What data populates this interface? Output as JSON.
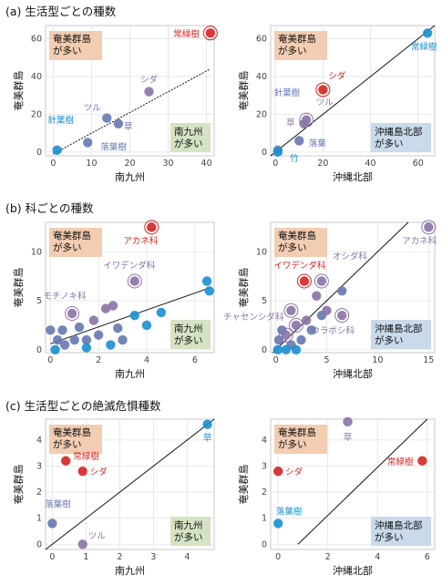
{
  "sections": {
    "a": "(a) 生活型ごとの種数",
    "b": "(b) 科ごとの種数",
    "c": "(c) 生活型ごとの絶滅危惧種数"
  },
  "colors": {
    "red": "#d62424",
    "purple": "#8a72a6",
    "blue": "#1a8fd0",
    "steel": "#6678b0",
    "orangeBox": "#f2cdb2",
    "greenBox": "#d5e3c4",
    "blueBox": "#c9daea"
  },
  "chart_data": [
    {
      "id": "a-left",
      "type": "scatter",
      "xlabel": "南九州",
      "ylabel": "奄美群島",
      "xlim": [
        -2,
        42
      ],
      "ylim": [
        -2,
        67
      ],
      "xticks": [
        0,
        10,
        20,
        30,
        40
      ],
      "yticks": [
        0,
        20,
        40,
        60
      ],
      "diag": false,
      "trend": [
        [
          0,
          -1
        ],
        [
          41,
          44
        ]
      ],
      "box_top": [
        "奄美群島",
        "が多い"
      ],
      "box_bottom": [
        "南九州",
        "が多い"
      ],
      "bottom_box_color": "green",
      "points": [
        {
          "x": 41,
          "y": 63,
          "c": "red",
          "ring": true,
          "label": "常緑樹"
        },
        {
          "x": 25,
          "y": 32,
          "c": "purple",
          "label": "シダ"
        },
        {
          "x": 14,
          "y": 18,
          "c": "steel",
          "label": "ツル"
        },
        {
          "x": 17,
          "y": 15,
          "c": "steel",
          "label": "草"
        },
        {
          "x": 9,
          "y": 5,
          "c": "steel",
          "label": "落葉樹"
        },
        {
          "x": 1,
          "y": 1,
          "c": "blue",
          "label": "針葉樹"
        }
      ]
    },
    {
      "id": "a-right",
      "type": "scatter",
      "xlabel": "沖縄北部",
      "ylabel": "奄美群島",
      "xlim": [
        -2,
        67
      ],
      "ylim": [
        -2,
        67
      ],
      "xticks": [
        0,
        20,
        40,
        60
      ],
      "yticks": [
        0,
        20,
        40,
        60
      ],
      "diag": true,
      "box_top": [
        "奄美群島",
        "が多い"
      ],
      "box_bottom": [
        "沖縄島北部",
        "が多い"
      ],
      "bottom_box_color": "blue",
      "points": [
        {
          "x": 64,
          "y": 63,
          "c": "blue",
          "label": "常緑樹"
        },
        {
          "x": 20,
          "y": 33,
          "c": "red",
          "ring": true,
          "label": "シダ"
        },
        {
          "x": 13,
          "y": 17,
          "c": "purple",
          "ring": true,
          "label": "ツル"
        },
        {
          "x": 12,
          "y": 15,
          "c": "purple",
          "label": "草"
        },
        {
          "x": 10,
          "y": 6,
          "c": "steel",
          "label": "落葉"
        },
        {
          "x": 1,
          "y": 1,
          "c": "steel",
          "label": "針葉樹"
        },
        {
          "x": 1,
          "y": 0,
          "c": "blue",
          "label": "竹"
        }
      ]
    },
    {
      "id": "b-left",
      "type": "scatter",
      "xlabel": "南九州",
      "ylabel": "奄美群島",
      "xlim": [
        -0.2,
        6.8
      ],
      "ylim": [
        -0.3,
        13
      ],
      "xticks": [
        0,
        2,
        4,
        6
      ],
      "yticks": [
        0,
        5,
        10
      ],
      "diag": false,
      "trend": [
        [
          0,
          0.6
        ],
        [
          6.6,
          6.3
        ]
      ],
      "box_top": [
        "奄美群島",
        "が多い"
      ],
      "box_bottom": [
        "南九州",
        "が多い"
      ],
      "bottom_box_color": "green",
      "points": [
        {
          "x": 4.2,
          "y": 12.5,
          "c": "red",
          "ring": true,
          "label": "アカネ科"
        },
        {
          "x": 3.5,
          "y": 7,
          "c": "purple",
          "ring": true,
          "label": "イワデンダ科"
        },
        {
          "x": 0.9,
          "y": 3.7,
          "c": "purple",
          "ring": true,
          "label": "モチノキ科"
        },
        {
          "x": 0.3,
          "y": 1,
          "c": "steel"
        },
        {
          "x": 0.5,
          "y": 2,
          "c": "steel"
        },
        {
          "x": 0.6,
          "y": 0.5,
          "c": "steel"
        },
        {
          "x": 1,
          "y": 1,
          "c": "steel"
        },
        {
          "x": 1.2,
          "y": 2.3,
          "c": "steel"
        },
        {
          "x": 1.5,
          "y": 1,
          "c": "steel"
        },
        {
          "x": 1.8,
          "y": 3,
          "c": "purple"
        },
        {
          "x": 2,
          "y": 1.5,
          "c": "steel"
        },
        {
          "x": 2.3,
          "y": 4.2,
          "c": "purple"
        },
        {
          "x": 2.6,
          "y": 4.5,
          "c": "purple"
        },
        {
          "x": 2.8,
          "y": 2.2,
          "c": "steel"
        },
        {
          "x": 3,
          "y": 1,
          "c": "steel"
        },
        {
          "x": 3.5,
          "y": 3.5,
          "c": "blue"
        },
        {
          "x": 4,
          "y": 2.5,
          "c": "blue"
        },
        {
          "x": 4.6,
          "y": 3.8,
          "c": "blue"
        },
        {
          "x": 6.5,
          "y": 7,
          "c": "blue"
        },
        {
          "x": 6.6,
          "y": 6,
          "c": "blue"
        },
        {
          "x": 0.2,
          "y": 0,
          "c": "blue"
        },
        {
          "x": 1.5,
          "y": 0.2,
          "c": "blue"
        },
        {
          "x": 2.5,
          "y": 0.5,
          "c": "blue"
        },
        {
          "x": 0,
          "y": 2,
          "c": "steel"
        }
      ]
    },
    {
      "id": "b-right",
      "type": "scatter",
      "xlabel": "沖縄北部",
      "ylabel": "奄美群島",
      "xlim": [
        -0.5,
        15.6
      ],
      "ylim": [
        -0.3,
        13
      ],
      "xticks": [
        0,
        5,
        10,
        15
      ],
      "yticks": [
        0,
        5,
        10
      ],
      "diag": true,
      "box_top": [
        "奄美群島",
        "が多い"
      ],
      "box_bottom": [
        "沖縄島北部",
        "が多い"
      ],
      "bottom_box_color": "blue",
      "points": [
        {
          "x": 15,
          "y": 12.5,
          "c": "purple",
          "ring": true,
          "label": "アカネ科"
        },
        {
          "x": 2.8,
          "y": 7,
          "c": "red",
          "ring": true,
          "label": "イワデンダ科"
        },
        {
          "x": 4.5,
          "y": 7,
          "c": "purple",
          "ring": true,
          "label": "オシダ科"
        },
        {
          "x": 1.5,
          "y": 4,
          "c": "purple",
          "ring": true,
          "label": "チャセンシダ科"
        },
        {
          "x": 6.5,
          "y": 3.5,
          "c": "purple",
          "ring": true,
          "label": "ウラボシ科"
        },
        {
          "x": 0.3,
          "y": 1,
          "c": "steel"
        },
        {
          "x": 0.6,
          "y": 2,
          "c": "steel"
        },
        {
          "x": 1,
          "y": 1.5,
          "c": "purple",
          "ring": true
        },
        {
          "x": 1.5,
          "y": 0.5,
          "c": "steel"
        },
        {
          "x": 2,
          "y": 2.5,
          "c": "purple",
          "ring": true
        },
        {
          "x": 2.5,
          "y": 1,
          "c": "steel"
        },
        {
          "x": 3,
          "y": 3,
          "c": "purple"
        },
        {
          "x": 3.5,
          "y": 2,
          "c": "steel"
        },
        {
          "x": 4,
          "y": 5.5,
          "c": "purple"
        },
        {
          "x": 4.5,
          "y": 3.5,
          "c": "steel"
        },
        {
          "x": 5,
          "y": 4,
          "c": "purple"
        },
        {
          "x": 6.5,
          "y": 6,
          "c": "steel"
        },
        {
          "x": 0.2,
          "y": 0,
          "c": "blue"
        },
        {
          "x": 1,
          "y": 0,
          "c": "blue"
        },
        {
          "x": 2,
          "y": 0,
          "c": "blue"
        }
      ]
    },
    {
      "id": "c-left",
      "type": "scatter",
      "xlabel": "南九州",
      "ylabel": "奄美群島",
      "xlim": [
        -0.2,
        4.8
      ],
      "ylim": [
        -0.2,
        4.8
      ],
      "xticks": [
        0,
        1,
        2,
        3,
        4
      ],
      "yticks": [
        0,
        1,
        2,
        3,
        4
      ],
      "diag": true,
      "box_top": [
        "奄美群島",
        "が多い"
      ],
      "box_bottom": [
        "南九州",
        "が多い"
      ],
      "bottom_box_color": "green",
      "points": [
        {
          "x": 4.6,
          "y": 4.6,
          "c": "blue",
          "label": "草"
        },
        {
          "x": 0.4,
          "y": 3.2,
          "c": "red",
          "label": "常緑樹"
        },
        {
          "x": 0.9,
          "y": 2.8,
          "c": "red",
          "label": "シダ"
        },
        {
          "x": 0,
          "y": 0.8,
          "c": "steel",
          "label": "落葉樹"
        },
        {
          "x": 0.9,
          "y": 0,
          "c": "purple",
          "label": "ツル"
        }
      ]
    },
    {
      "id": "c-right",
      "type": "scatter",
      "xlabel": "沖縄北部",
      "ylabel": "奄美群島",
      "xlim": [
        -0.3,
        6.3
      ],
      "ylim": [
        -0.2,
        4.8
      ],
      "xticks": [
        0,
        2,
        4,
        6
      ],
      "yticks": [
        0,
        1,
        2,
        3,
        4
      ],
      "diag": true,
      "diag_line": [
        [
          0.8,
          0
        ],
        [
          6,
          4.8
        ]
      ],
      "box_top": [
        "奄美群島",
        "が多い"
      ],
      "box_bottom": [
        "沖縄島北部",
        "が多い"
      ],
      "bottom_box_color": "blue",
      "points": [
        {
          "x": 2.8,
          "y": 4.7,
          "c": "purple",
          "label": "草"
        },
        {
          "x": 5.8,
          "y": 3.2,
          "c": "red",
          "label": "常緑樹"
        },
        {
          "x": 0,
          "y": 2.8,
          "c": "red",
          "label": "シダ"
        },
        {
          "x": 0,
          "y": 0.8,
          "c": "blue",
          "label": "落葉樹"
        }
      ]
    }
  ]
}
